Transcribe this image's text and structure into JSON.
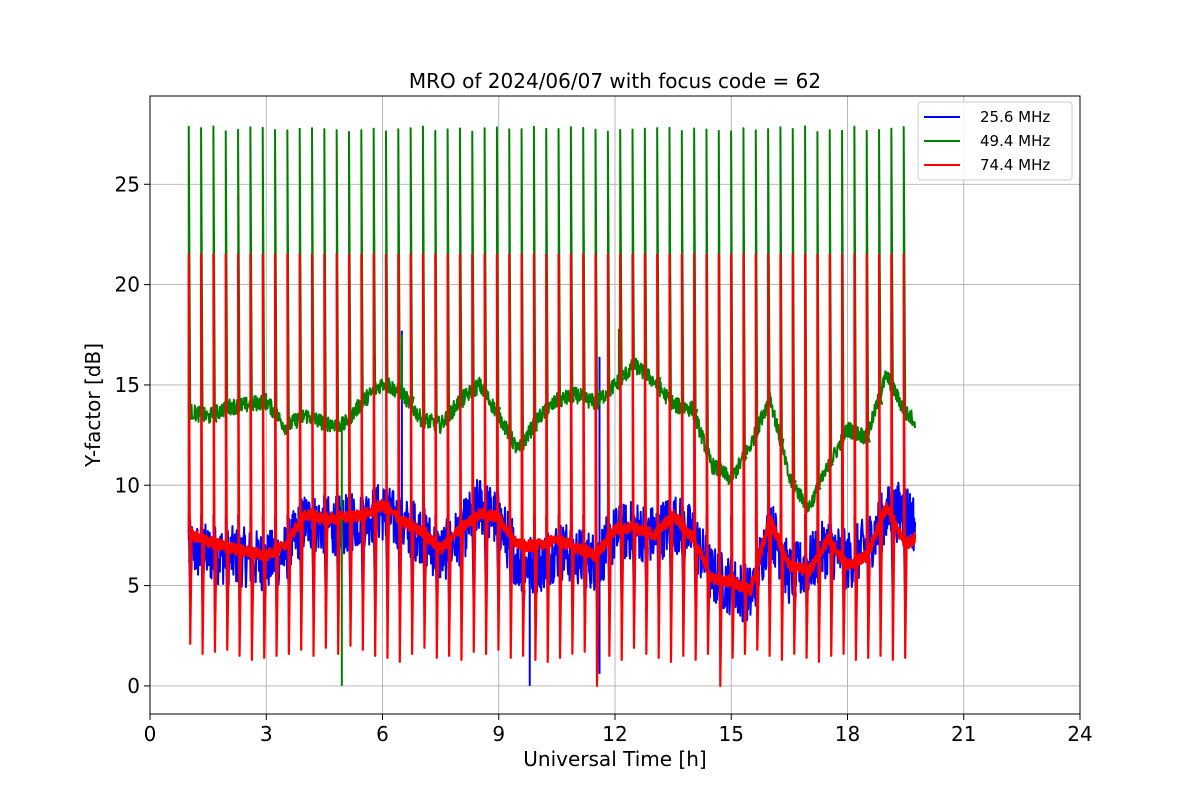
{
  "chart_data": {
    "type": "line",
    "title": "MRO of 2024/06/07 with focus code = 62",
    "xlabel": "Universal Time [h]",
    "ylabel": "Y-factor [dB]",
    "xlim": [
      0,
      24
    ],
    "ylim": [
      -1.4,
      29.4
    ],
    "xticks": [
      0,
      3,
      6,
      9,
      12,
      15,
      18,
      21,
      24
    ],
    "yticks": [
      0,
      5,
      10,
      15,
      20,
      25
    ],
    "grid": true,
    "legend_position": "top-right",
    "x_start": 1.0,
    "x_end": 19.75,
    "calibration_spike_count": 59,
    "series": [
      {
        "name": "25.6 MHz",
        "color": "#0000ff",
        "baseline": [
          [
            1.0,
            6.8
          ],
          [
            1.5,
            6.6
          ],
          [
            2.0,
            6.5
          ],
          [
            2.5,
            6.4
          ],
          [
            3.0,
            6.2
          ],
          [
            3.5,
            6.6
          ],
          [
            4.0,
            8.2
          ],
          [
            4.5,
            8.0
          ],
          [
            5.0,
            8.0
          ],
          [
            5.5,
            8.4
          ],
          [
            6.0,
            8.7
          ],
          [
            6.5,
            8.0
          ],
          [
            7.0,
            7.6
          ],
          [
            7.5,
            6.5
          ],
          [
            8.0,
            7.5
          ],
          [
            8.5,
            9.0
          ],
          [
            9.0,
            8.2
          ],
          [
            9.5,
            6.2
          ],
          [
            10.0,
            6.0
          ],
          [
            10.5,
            6.8
          ],
          [
            11.0,
            6.5
          ],
          [
            11.5,
            6.2
          ],
          [
            12.0,
            7.5
          ],
          [
            12.5,
            7.8
          ],
          [
            13.0,
            7.5
          ],
          [
            13.5,
            8.2
          ],
          [
            14.0,
            7.5
          ],
          [
            14.5,
            5.5
          ],
          [
            15.0,
            5.0
          ],
          [
            15.5,
            4.5
          ],
          [
            16.0,
            8.0
          ],
          [
            16.5,
            5.5
          ],
          [
            17.0,
            6.0
          ],
          [
            17.5,
            7.0
          ],
          [
            18.0,
            6.2
          ],
          [
            18.5,
            7.0
          ],
          [
            19.0,
            8.5
          ],
          [
            19.5,
            8.8
          ],
          [
            19.75,
            8.0
          ]
        ],
        "spikes": [
          [
            6.5,
            17.7
          ],
          [
            11.6,
            16.4
          ],
          [
            9.8,
            0.0
          ],
          [
            11.6,
            0.6
          ]
        ]
      },
      {
        "name": "49.4 MHz",
        "color": "#008000",
        "baseline": [
          [
            1.0,
            13.7
          ],
          [
            1.5,
            13.4
          ],
          [
            2.0,
            13.9
          ],
          [
            2.5,
            14.0
          ],
          [
            3.0,
            14.2
          ],
          [
            3.5,
            12.9
          ],
          [
            4.0,
            13.5
          ],
          [
            4.5,
            13.1
          ],
          [
            5.0,
            13.0
          ],
          [
            5.5,
            14.2
          ],
          [
            6.0,
            15.1
          ],
          [
            6.5,
            14.6
          ],
          [
            7.0,
            13.3
          ],
          [
            7.5,
            13.0
          ],
          [
            8.0,
            14.2
          ],
          [
            8.5,
            15.0
          ],
          [
            9.0,
            13.5
          ],
          [
            9.5,
            11.7
          ],
          [
            10.0,
            13.3
          ],
          [
            10.5,
            14.2
          ],
          [
            11.0,
            14.5
          ],
          [
            11.5,
            14.1
          ],
          [
            12.0,
            15.0
          ],
          [
            12.5,
            16.0
          ],
          [
            13.0,
            15.2
          ],
          [
            13.5,
            14.0
          ],
          [
            14.0,
            13.8
          ],
          [
            14.5,
            11.0
          ],
          [
            15.0,
            10.3
          ],
          [
            15.5,
            12.0
          ],
          [
            16.0,
            14.4
          ],
          [
            16.5,
            10.3
          ],
          [
            17.0,
            8.9
          ],
          [
            17.5,
            10.9
          ],
          [
            18.0,
            12.8
          ],
          [
            18.5,
            12.4
          ],
          [
            19.0,
            15.5
          ],
          [
            19.5,
            13.6
          ],
          [
            19.75,
            13.2
          ]
        ],
        "spikes": [
          [
            6.5,
            17.5
          ],
          [
            12.1,
            17.8
          ],
          [
            4.95,
            0.0
          ]
        ]
      },
      {
        "name": "74.4 MHz",
        "color": "#ff0000",
        "baseline": [
          [
            1.0,
            7.6
          ],
          [
            1.5,
            7.2
          ],
          [
            2.0,
            6.9
          ],
          [
            2.5,
            6.7
          ],
          [
            3.0,
            6.5
          ],
          [
            3.5,
            7.0
          ],
          [
            4.0,
            8.6
          ],
          [
            4.5,
            8.3
          ],
          [
            5.0,
            8.4
          ],
          [
            5.5,
            8.5
          ],
          [
            6.0,
            9.0
          ],
          [
            6.5,
            8.2
          ],
          [
            7.0,
            7.7
          ],
          [
            7.5,
            6.8
          ],
          [
            8.0,
            7.8
          ],
          [
            8.5,
            8.6
          ],
          [
            9.0,
            8.4
          ],
          [
            9.5,
            7.0
          ],
          [
            10.0,
            7.0
          ],
          [
            10.5,
            7.3
          ],
          [
            11.0,
            6.9
          ],
          [
            11.5,
            6.5
          ],
          [
            12.0,
            7.8
          ],
          [
            12.5,
            7.9
          ],
          [
            13.0,
            7.5
          ],
          [
            13.5,
            8.5
          ],
          [
            14.0,
            7.4
          ],
          [
            14.5,
            5.4
          ],
          [
            15.0,
            5.2
          ],
          [
            15.5,
            4.8
          ],
          [
            16.0,
            8.3
          ],
          [
            16.5,
            6.0
          ],
          [
            17.0,
            5.7
          ],
          [
            17.5,
            7.3
          ],
          [
            18.0,
            6.0
          ],
          [
            18.5,
            6.5
          ],
          [
            19.0,
            8.9
          ],
          [
            19.5,
            7.0
          ],
          [
            19.75,
            7.4
          ]
        ],
        "spike_top": 21.5,
        "spike_bottom": [
          2.1,
          1.6,
          1.7,
          1.8,
          1.5,
          1.3,
          1.4,
          1.5,
          1.6,
          1.8,
          1.5,
          1.9,
          1.6,
          2.0,
          1.8,
          1.5,
          1.4,
          1.2,
          1.6,
          1.9,
          1.4,
          1.5,
          1.3,
          1.7,
          1.6,
          1.8,
          1.4,
          1.5,
          1.3,
          1.2,
          1.4,
          1.6,
          1.7,
          0.0,
          1.5,
          1.3,
          1.9,
          1.6,
          1.4,
          1.2,
          1.5,
          1.3,
          1.6,
          0.0,
          1.4,
          1.6,
          1.8,
          1.5,
          1.3,
          1.6,
          1.4,
          1.2,
          1.5,
          1.6,
          1.3,
          1.4,
          1.5,
          1.3,
          1.4
        ]
      }
    ]
  }
}
